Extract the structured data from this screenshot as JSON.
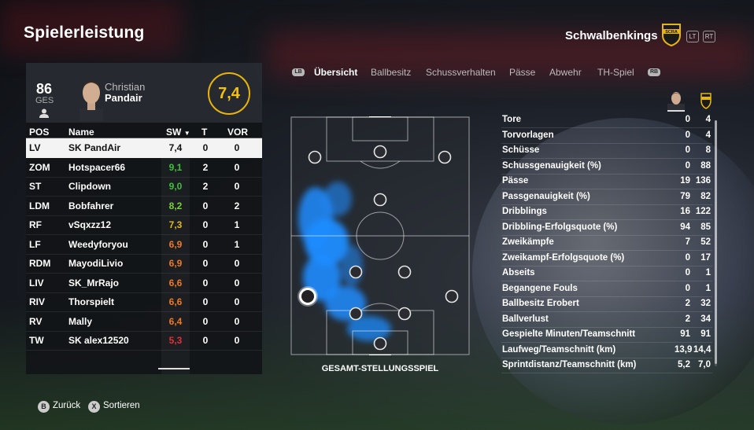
{
  "page": {
    "title": "Spielerleistung",
    "team_name": "Schwalbenkings",
    "crest_text": "SCRA",
    "left_trigger": "LT",
    "right_trigger": "RT"
  },
  "player": {
    "overall": "86",
    "overall_label": "GES",
    "first_name": "Christian",
    "last_name": "Pandair",
    "rating": "7,4"
  },
  "table": {
    "headers": {
      "pos": "POS",
      "name": "Name",
      "sw": "SW",
      "t": "T",
      "vor": "VOR"
    },
    "rows": [
      {
        "pos": "LV",
        "name": "SK PandAir",
        "sw": "7,4",
        "t": "0",
        "vor": "0",
        "color": "#111111"
      },
      {
        "pos": "ZOM",
        "name": "Hotspacer66",
        "sw": "9,1",
        "t": "2",
        "vor": "0",
        "color": "#3fbf3a"
      },
      {
        "pos": "ST",
        "name": "Clipdown",
        "sw": "9,0",
        "t": "2",
        "vor": "0",
        "color": "#3fbf3a"
      },
      {
        "pos": "LDM",
        "name": "Bobfahrer",
        "sw": "8,2",
        "t": "0",
        "vor": "2",
        "color": "#7ccf35"
      },
      {
        "pos": "RF",
        "name": "vSqxzz12",
        "sw": "7,3",
        "t": "0",
        "vor": "1",
        "color": "#e0b81c"
      },
      {
        "pos": "LF",
        "name": "Weedyforyou",
        "sw": "6,9",
        "t": "0",
        "vor": "1",
        "color": "#ee7a1c"
      },
      {
        "pos": "RDM",
        "name": "MayodiLivio",
        "sw": "6,9",
        "t": "0",
        "vor": "0",
        "color": "#ee7a1c"
      },
      {
        "pos": "LIV",
        "name": "SK_MrRajo",
        "sw": "6,6",
        "t": "0",
        "vor": "0",
        "color": "#ee7a1c"
      },
      {
        "pos": "RIV",
        "name": "Thorspielt",
        "sw": "6,6",
        "t": "0",
        "vor": "0",
        "color": "#ee7a1c"
      },
      {
        "pos": "RV",
        "name": "Mally",
        "sw": "6,4",
        "t": "0",
        "vor": "0",
        "color": "#ee7a1c"
      },
      {
        "pos": "TW",
        "name": "SK alex12520",
        "sw": "5,3",
        "t": "0",
        "vor": "0",
        "color": "#e0313b"
      }
    ]
  },
  "tabs": {
    "lb": "LB",
    "rb": "RB",
    "items": [
      {
        "label": "Übersicht",
        "active": true
      },
      {
        "label": "Ballbesitz",
        "active": false
      },
      {
        "label": "Schussverhalten",
        "active": false
      },
      {
        "label": "Pässe",
        "active": false
      },
      {
        "label": "Abwehr",
        "active": false
      },
      {
        "label": "TH-Spiel",
        "active": false
      }
    ]
  },
  "pitch": {
    "caption": "GESAMT-STELLUNGSSPIEL"
  },
  "stats": [
    {
      "label": "Tore",
      "player": "0",
      "team": "4"
    },
    {
      "label": "Torvorlagen",
      "player": "0",
      "team": "4"
    },
    {
      "label": "Schüsse",
      "player": "0",
      "team": "8"
    },
    {
      "label": "Schussgenauigkeit (%)",
      "player": "0",
      "team": "88"
    },
    {
      "label": "Pässe",
      "player": "19",
      "team": "136"
    },
    {
      "label": "Passgenauigkeit (%)",
      "player": "79",
      "team": "82"
    },
    {
      "label": "Dribblings",
      "player": "16",
      "team": "122"
    },
    {
      "label": "Dribbling-Erfolgsquote (%)",
      "player": "94",
      "team": "85"
    },
    {
      "label": "Zweikämpfe",
      "player": "7",
      "team": "52"
    },
    {
      "label": "Zweikampf-Erfolgsquote (%)",
      "player": "0",
      "team": "17"
    },
    {
      "label": "Abseits",
      "player": "0",
      "team": "1"
    },
    {
      "label": "Begangene Fouls",
      "player": "0",
      "team": "1"
    },
    {
      "label": "Ballbesitz Erobert",
      "player": "2",
      "team": "32"
    },
    {
      "label": "Ballverlust",
      "player": "2",
      "team": "34"
    },
    {
      "label": "Gespielte Minuten/Teamschnitt",
      "player": "91",
      "team": "91"
    },
    {
      "label": "Laufweg/Teamschnitt (km)",
      "player": "13,9",
      "team": "14,4"
    },
    {
      "label": "Sprintdistanz/Teamschnitt (km)",
      "player": "5,2",
      "team": "7,0"
    }
  ],
  "footer": {
    "back_key": "B",
    "back_label": "Zurück",
    "sort_key": "X",
    "sort_label": "Sortieren"
  },
  "colors": {
    "accent": "#f3c20c",
    "heatmap": "#1e8cff"
  }
}
